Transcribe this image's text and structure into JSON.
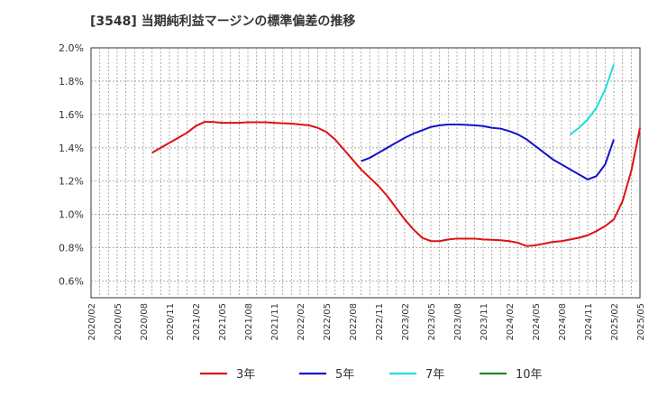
{
  "chart_data": {
    "type": "line",
    "title": "[3548]  当期純利益マージンの標準偏差の推移",
    "xlabel": "",
    "ylabel": "",
    "ylim": [
      0.5,
      2.0
    ],
    "yticks": [
      0.6,
      0.8,
      1.0,
      1.2,
      1.4,
      1.6,
      1.8,
      2.0
    ],
    "ytick_labels": [
      "0.6%",
      "0.8%",
      "1.0%",
      "1.2%",
      "1.4%",
      "1.6%",
      "1.8%",
      "2.0%"
    ],
    "x_start": "2020/02",
    "x_end": "2025/05",
    "x_tick_labels": [
      "2020/02",
      "2020/05",
      "2020/08",
      "2020/11",
      "2021/02",
      "2021/05",
      "2021/08",
      "2021/11",
      "2022/02",
      "2022/05",
      "2022/08",
      "2022/11",
      "2023/02",
      "2023/05",
      "2023/08",
      "2023/11",
      "2024/02",
      "2024/05",
      "2024/08",
      "2024/11",
      "2025/02",
      "2025/05"
    ],
    "grid": true,
    "legend_position": "bottom",
    "series": [
      {
        "name": "3年",
        "color": "#dd1111",
        "start": "2020/09",
        "values": [
          1.37,
          1.4,
          1.43,
          1.46,
          1.49,
          1.53,
          1.555,
          1.555,
          1.55,
          1.55,
          1.55,
          1.553,
          1.553,
          1.553,
          1.55,
          1.547,
          1.545,
          1.54,
          1.535,
          1.52,
          1.495,
          1.45,
          1.39,
          1.33,
          1.27,
          1.22,
          1.17,
          1.11,
          1.04,
          0.97,
          0.91,
          0.86,
          0.84,
          0.84,
          0.85,
          0.855,
          0.855,
          0.855,
          0.85,
          0.848,
          0.845,
          0.84,
          0.83,
          0.81,
          0.815,
          0.825,
          0.835,
          0.84,
          0.85,
          0.86,
          0.875,
          0.9,
          0.93,
          0.97,
          1.08,
          1.26,
          1.52
        ]
      },
      {
        "name": "5年",
        "color": "#1111cc",
        "start": "2022/09",
        "values": [
          1.32,
          1.34,
          1.37,
          1.4,
          1.43,
          1.46,
          1.485,
          1.505,
          1.525,
          1.535,
          1.54,
          1.54,
          1.538,
          1.535,
          1.53,
          1.52,
          1.515,
          1.5,
          1.48,
          1.45,
          1.41,
          1.37,
          1.33,
          1.3,
          1.27,
          1.24,
          1.21,
          1.23,
          1.3,
          1.45
        ]
      },
      {
        "name": "7年",
        "color": "#22dddd",
        "start": "2024/09",
        "values": [
          1.48,
          1.52,
          1.57,
          1.64,
          1.75,
          1.9
        ]
      },
      {
        "name": "10年",
        "color": "#228822",
        "start": "2025/02",
        "values": []
      }
    ]
  }
}
